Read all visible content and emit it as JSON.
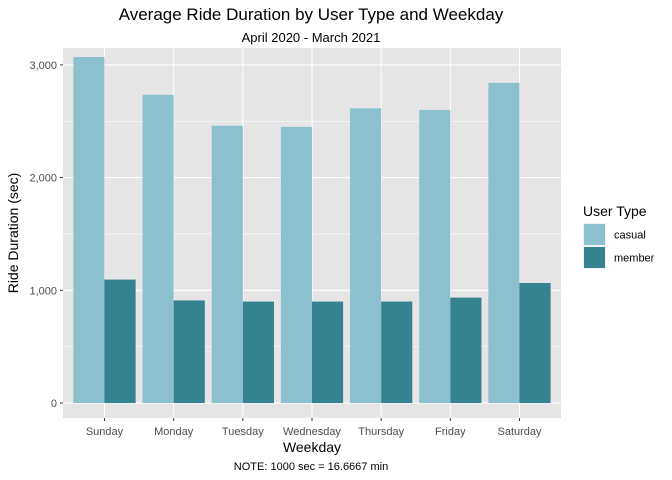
{
  "chart_data": {
    "type": "bar",
    "title": "Average Ride Duration by User Type and Weekday",
    "subtitle": "April 2020 - March 2021",
    "xlabel": "Weekday",
    "ylabel": "Ride Duration (sec)",
    "caption": "NOTE: 1000 sec = 16.6667 min",
    "categories": [
      "Sunday",
      "Monday",
      "Tuesday",
      "Wednesday",
      "Thursday",
      "Friday",
      "Saturday"
    ],
    "series": [
      {
        "name": "casual",
        "color": "#8cc0cf",
        "values": [
          3070,
          2735,
          2460,
          2450,
          2615,
          2600,
          2840
        ]
      },
      {
        "name": "member",
        "color": "#358290",
        "values": [
          1095,
          910,
          900,
          900,
          900,
          935,
          1065
        ]
      }
    ],
    "ylim": [
      0,
      3150
    ],
    "yticks": [
      0,
      1000,
      2000,
      3000
    ],
    "ytick_labels": [
      "0",
      "1,000",
      "2,000",
      "3,000"
    ],
    "grid": true,
    "legend": {
      "title": "User Type",
      "position": "right"
    },
    "panel_background": "#e5e5e5",
    "grid_color": "#ffffff"
  }
}
